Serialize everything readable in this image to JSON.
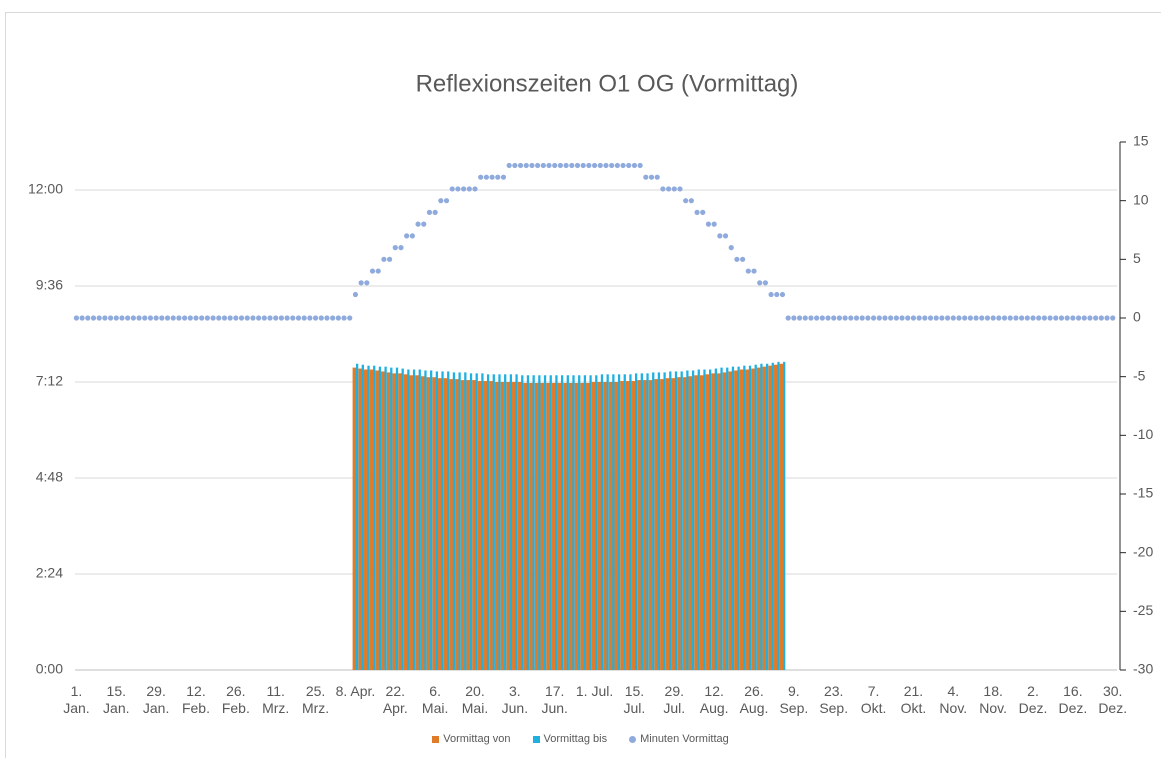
{
  "chart_data": {
    "type": "bar",
    "title": "Reflexionszeiten O1 OG (Vormittag)",
    "x": [
      1,
      3,
      5,
      7,
      9,
      11,
      13,
      15,
      17,
      19,
      21,
      23,
      25,
      27,
      29,
      31,
      33,
      35,
      37,
      39,
      41,
      43,
      45,
      47,
      49,
      51,
      53,
      55,
      57,
      59,
      61,
      63,
      65,
      67,
      69,
      71,
      73,
      75,
      77,
      79,
      81,
      83,
      85,
      87,
      89,
      91,
      93,
      95,
      97,
      99,
      101,
      103,
      105,
      107,
      109,
      111,
      113,
      115,
      117,
      119,
      121,
      123,
      125,
      127,
      129,
      131,
      133,
      135,
      137,
      139,
      141,
      143,
      145,
      147,
      149,
      151,
      153,
      155,
      157,
      159,
      161,
      163,
      165,
      167,
      169,
      171,
      173,
      175,
      177,
      179,
      181,
      183,
      185,
      187,
      189,
      191,
      193,
      195,
      197,
      199,
      201,
      203,
      205,
      207,
      209,
      211,
      213,
      215,
      217,
      219,
      221,
      223,
      225,
      227,
      229,
      231,
      233,
      235,
      237,
      239,
      241,
      243,
      245,
      247,
      249,
      251,
      253,
      255,
      257,
      259,
      261,
      263,
      265,
      267,
      269,
      271,
      273,
      275,
      277,
      279,
      281,
      283,
      285,
      287,
      289,
      291,
      293,
      295,
      297,
      299,
      301,
      303,
      305,
      307,
      309,
      311,
      313,
      315,
      317,
      319,
      321,
      323,
      325,
      327,
      329,
      331,
      333,
      335,
      337,
      339,
      341,
      343,
      345,
      347,
      349,
      351,
      353,
      355,
      357,
      359,
      361,
      363,
      365
    ],
    "xlim": [
      0.5,
      366.5
    ],
    "xticks": [
      {
        "value": 1,
        "label": "1. Jan."
      },
      {
        "value": 15,
        "label": "15. Jan."
      },
      {
        "value": 29,
        "label": "29. Jan."
      },
      {
        "value": 43,
        "label": "12. Feb."
      },
      {
        "value": 57,
        "label": "26. Feb."
      },
      {
        "value": 71,
        "label": "11. Mrz."
      },
      {
        "value": 85,
        "label": "25. Mrz."
      },
      {
        "value": 99,
        "label": "8. Apr."
      },
      {
        "value": 113,
        "label": "22. Apr."
      },
      {
        "value": 127,
        "label": "6. Mai."
      },
      {
        "value": 141,
        "label": "20. Mai."
      },
      {
        "value": 155,
        "label": "3. Jun."
      },
      {
        "value": 169,
        "label": "17. Jun."
      },
      {
        "value": 183,
        "label": "1. Jul."
      },
      {
        "value": 197,
        "label": "15. Jul."
      },
      {
        "value": 211,
        "label": "29. Jul."
      },
      {
        "value": 225,
        "label": "12. Aug."
      },
      {
        "value": 239,
        "label": "26. Aug."
      },
      {
        "value": 253,
        "label": "9. Sep."
      },
      {
        "value": 267,
        "label": "23. Sep."
      },
      {
        "value": 281,
        "label": "7. Okt."
      },
      {
        "value": 295,
        "label": "21. Okt."
      },
      {
        "value": 309,
        "label": "4. Nov."
      },
      {
        "value": 323,
        "label": "18. Nov."
      },
      {
        "value": 337,
        "label": "2. Dez."
      },
      {
        "value": 351,
        "label": "16. Dez."
      },
      {
        "value": 365,
        "label": "30. Dez."
      }
    ],
    "ylim": [
      0,
      0.55
    ],
    "yticks": [
      {
        "value": 0,
        "label": "0:00"
      },
      {
        "value": 0.1,
        "label": "2:24"
      },
      {
        "value": 0.2,
        "label": "4:48"
      },
      {
        "value": 0.3,
        "label": "7:12"
      },
      {
        "value": 0.4,
        "label": "9:36"
      },
      {
        "value": 0.5,
        "label": "12:00"
      }
    ],
    "y2lim": [
      -30,
      15
    ],
    "y2ticks": [
      -30,
      -25,
      -20,
      -15,
      -10,
      -5,
      0,
      5,
      10,
      15
    ],
    "grid": true,
    "legend": "bottom",
    "series": [
      {
        "name": "Vormittag von",
        "color": "#e07b2a",
        "values": [
          null,
          null,
          null,
          null,
          null,
          null,
          null,
          null,
          null,
          null,
          null,
          null,
          null,
          null,
          null,
          null,
          null,
          null,
          null,
          null,
          null,
          null,
          null,
          null,
          null,
          null,
          null,
          null,
          null,
          null,
          null,
          null,
          null,
          null,
          null,
          null,
          null,
          null,
          null,
          null,
          null,
          null,
          null,
          null,
          null,
          null,
          null,
          null,
          null,
          0.315,
          0.314,
          0.313,
          0.313,
          0.312,
          0.311,
          0.31,
          0.309,
          0.309,
          0.308,
          0.307,
          0.307,
          0.306,
          0.305,
          0.305,
          0.304,
          0.304,
          0.303,
          0.303,
          0.302,
          0.302,
          0.302,
          0.301,
          0.301,
          0.301,
          0.3,
          0.3,
          0.3,
          0.3,
          0.3,
          0.299,
          0.299,
          0.299,
          0.299,
          0.299,
          0.299,
          0.299,
          0.299,
          0.299,
          0.299,
          0.299,
          0.299,
          0.3,
          0.3,
          0.3,
          0.3,
          0.3,
          0.301,
          0.301,
          0.301,
          0.302,
          0.302,
          0.302,
          0.303,
          0.303,
          0.304,
          0.304,
          0.305,
          0.305,
          0.306,
          0.307,
          0.307,
          0.308,
          0.309,
          0.309,
          0.31,
          0.311,
          0.312,
          0.313,
          0.313,
          0.314,
          0.315,
          0.316,
          0.317,
          0.318,
          0.319,
          null,
          null,
          null,
          null,
          null,
          null,
          null,
          null,
          null,
          null,
          null,
          null,
          null,
          null,
          null,
          null,
          null,
          null,
          null,
          null,
          null,
          null,
          null,
          null,
          null,
          null,
          null,
          null,
          null,
          null,
          null,
          null,
          null,
          null,
          null,
          null,
          null,
          null,
          null,
          null,
          null,
          null,
          null,
          null,
          null,
          null,
          null,
          null,
          null,
          null,
          null,
          null,
          null,
          null,
          null,
          null,
          null,
          null
        ]
      },
      {
        "name": "Vormittag bis",
        "color": "#1fb0e0",
        "values": [
          null,
          null,
          null,
          null,
          null,
          null,
          null,
          null,
          null,
          null,
          null,
          null,
          null,
          null,
          null,
          null,
          null,
          null,
          null,
          null,
          null,
          null,
          null,
          null,
          null,
          null,
          null,
          null,
          null,
          null,
          null,
          null,
          null,
          null,
          null,
          null,
          null,
          null,
          null,
          null,
          null,
          null,
          null,
          null,
          null,
          null,
          null,
          null,
          null,
          0.319,
          0.318,
          0.317,
          0.317,
          0.316,
          0.316,
          0.315,
          0.315,
          0.314,
          0.313,
          0.313,
          0.313,
          0.312,
          0.312,
          0.311,
          0.311,
          0.311,
          0.31,
          0.31,
          0.31,
          0.309,
          0.309,
          0.309,
          0.308,
          0.308,
          0.308,
          0.308,
          0.308,
          0.308,
          0.307,
          0.307,
          0.307,
          0.307,
          0.307,
          0.307,
          0.307,
          0.307,
          0.307,
          0.307,
          0.307,
          0.307,
          0.307,
          0.307,
          0.308,
          0.308,
          0.308,
          0.308,
          0.308,
          0.308,
          0.309,
          0.309,
          0.309,
          0.31,
          0.31,
          0.31,
          0.311,
          0.311,
          0.311,
          0.312,
          0.312,
          0.313,
          0.313,
          0.313,
          0.314,
          0.315,
          0.315,
          0.316,
          0.316,
          0.317,
          0.317,
          0.318,
          0.319,
          0.319,
          0.32,
          0.321,
          0.321,
          null,
          null,
          null,
          null,
          null,
          null,
          null,
          null,
          null,
          null,
          null,
          null,
          null,
          null,
          null,
          null,
          null,
          null,
          null,
          null,
          null,
          null,
          null,
          null,
          null,
          null,
          null,
          null,
          null,
          null,
          null,
          null,
          null,
          null,
          null,
          null,
          null,
          null,
          null,
          null,
          null,
          null,
          null,
          null,
          null,
          null,
          null,
          null,
          null,
          null,
          null,
          null,
          null,
          null,
          null,
          null,
          null,
          null
        ]
      },
      {
        "name": "Minuten Vormittag",
        "color": "#8faadc",
        "axis": "y2",
        "type": "scatter",
        "values": [
          0,
          0,
          0,
          0,
          0,
          0,
          0,
          0,
          0,
          0,
          0,
          0,
          0,
          0,
          0,
          0,
          0,
          0,
          0,
          0,
          0,
          0,
          0,
          0,
          0,
          0,
          0,
          0,
          0,
          0,
          0,
          0,
          0,
          0,
          0,
          0,
          0,
          0,
          0,
          0,
          0,
          0,
          0,
          0,
          0,
          0,
          0,
          0,
          0,
          2,
          3,
          3,
          4,
          4,
          5,
          5,
          6,
          6,
          7,
          7,
          8,
          8,
          9,
          9,
          10,
          10,
          11,
          11,
          11,
          11,
          11,
          12,
          12,
          12,
          12,
          12,
          13,
          13,
          13,
          13,
          13,
          13,
          13,
          13,
          13,
          13,
          13,
          13,
          13,
          13,
          13,
          13,
          13,
          13,
          13,
          13,
          13,
          13,
          13,
          13,
          12,
          12,
          12,
          11,
          11,
          11,
          11,
          10,
          10,
          9,
          9,
          8,
          8,
          7,
          7,
          6,
          5,
          5,
          4,
          4,
          3,
          3,
          2,
          2,
          2,
          0,
          0,
          0,
          0,
          0,
          0,
          0,
          0,
          0,
          0,
          0,
          0,
          0,
          0,
          0,
          0,
          0,
          0,
          0,
          0,
          0,
          0,
          0,
          0,
          0,
          0,
          0,
          0,
          0,
          0,
          0,
          0,
          0,
          0,
          0,
          0,
          0,
          0,
          0,
          0,
          0,
          0,
          0,
          0,
          0,
          0,
          0,
          0,
          0,
          0,
          0,
          0,
          0,
          0,
          0,
          0,
          0,
          0
        ]
      }
    ]
  }
}
